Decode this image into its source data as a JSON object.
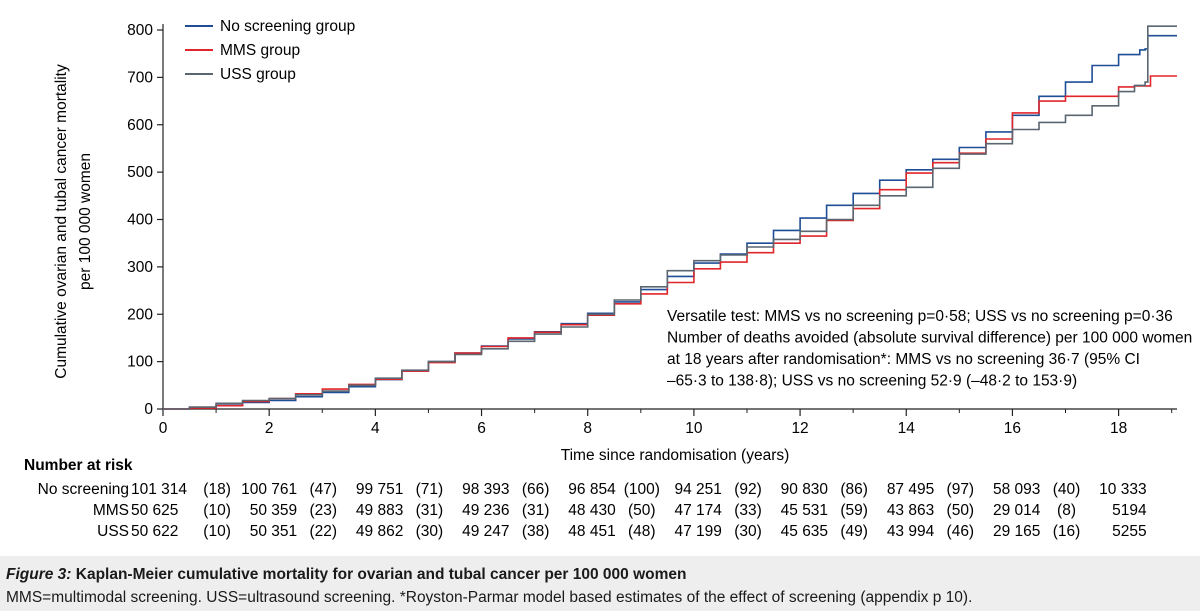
{
  "chart_data": {
    "type": "line",
    "step": true,
    "ylabel_line1": "Cumulative ovarian and tubal cancer mortality",
    "ylabel_line2": "per 100 000 women",
    "xlabel": "Time since randomisation (years)",
    "xlim": [
      0,
      19.1
    ],
    "ylim": [
      0,
      820
    ],
    "x_ticks": [
      0,
      2,
      4,
      6,
      8,
      10,
      12,
      14,
      16,
      18
    ],
    "x_tick_labels": [
      "0",
      "2",
      "4",
      "6",
      "8",
      "10",
      "12",
      "14",
      "16",
      "18"
    ],
    "y_ticks": [
      0,
      100,
      200,
      300,
      400,
      500,
      600,
      700,
      800
    ],
    "y_tick_labels": [
      "0",
      "100",
      "200",
      "300",
      "400",
      "500",
      "600",
      "700",
      "800"
    ],
    "grid": false,
    "legend_position": "top-left",
    "series": [
      {
        "name": "No screening group",
        "color": "#1f4e96",
        "x": [
          0,
          0.3,
          0.5,
          1,
          1.5,
          2,
          2.5,
          3,
          3.5,
          4,
          4.5,
          5,
          5.5,
          6,
          6.5,
          7,
          7.5,
          8,
          8.5,
          9,
          9.5,
          10,
          10.5,
          11,
          11.5,
          12,
          12.5,
          13,
          13.5,
          14,
          14.5,
          15,
          15.5,
          16,
          16.5,
          17,
          17.5,
          18,
          18.4,
          18.5,
          18.55,
          19.1
        ],
        "y": [
          0,
          0,
          3,
          8,
          14,
          18,
          26,
          35,
          47,
          62,
          80,
          100,
          118,
          133,
          148,
          163,
          180,
          202,
          226,
          252,
          280,
          308,
          327,
          350,
          377,
          403,
          430,
          455,
          483,
          505,
          527,
          552,
          585,
          620,
          660,
          690,
          725,
          748,
          758,
          760,
          788,
          788
        ]
      },
      {
        "name": "MMS group",
        "color": "#e0262b",
        "x": [
          0,
          0.3,
          0.5,
          1,
          1.5,
          2,
          2.5,
          3,
          3.5,
          4,
          4.5,
          5,
          5.5,
          6,
          6.5,
          7,
          7.5,
          8,
          8.5,
          9,
          9.5,
          10,
          10.5,
          11,
          11.5,
          12,
          12.5,
          13,
          13.5,
          14,
          14.5,
          15,
          15.5,
          16,
          16.5,
          17,
          17.5,
          18,
          18.3,
          18.6,
          19.1
        ],
        "y": [
          0,
          0,
          2,
          7,
          16,
          22,
          32,
          42,
          52,
          63,
          80,
          98,
          118,
          132,
          150,
          162,
          178,
          198,
          222,
          243,
          267,
          296,
          310,
          330,
          350,
          365,
          398,
          423,
          463,
          498,
          520,
          540,
          570,
          625,
          650,
          660,
          660,
          680,
          682,
          703,
          703
        ]
      },
      {
        "name": "USS group",
        "color": "#5a6670",
        "x": [
          0,
          0.3,
          0.5,
          1,
          1.5,
          2,
          2.5,
          3,
          3.5,
          4,
          4.5,
          5,
          5.5,
          6,
          6.5,
          7,
          7.5,
          8,
          8.5,
          9,
          9.5,
          10,
          10.5,
          11,
          11.5,
          12,
          12.5,
          13,
          13.5,
          14,
          14.5,
          15,
          15.5,
          16,
          16.5,
          17,
          17.5,
          18,
          18.3,
          18.5,
          18.55,
          19.1
        ],
        "y": [
          0,
          0,
          4,
          12,
          18,
          22,
          30,
          38,
          50,
          65,
          82,
          100,
          115,
          127,
          143,
          158,
          173,
          200,
          230,
          258,
          292,
          313,
          325,
          342,
          358,
          375,
          400,
          430,
          450,
          468,
          508,
          538,
          560,
          590,
          605,
          620,
          640,
          670,
          683,
          690,
          808,
          808
        ]
      }
    ],
    "annotation": [
      "Versatile test: MMS vs no screening p=0·58; USS vs no screening p=0·36",
      "Number of deaths avoided (absolute survival difference) per 100 000 women",
      "at 18 years after randomisation*: MMS vs no screening 36·7 (95% CI",
      "–65·3 to 138·8); USS vs no screening 52·9 (–48·2 to 153·9)"
    ],
    "risk_table": {
      "title": "Number at risk",
      "rows": [
        {
          "label": "No screening",
          "values": [
            "101 314",
            "100 761",
            "99 751",
            "98 393",
            "96 854",
            "94 251",
            "90 830",
            "87 495",
            "58 093",
            "10 333"
          ],
          "events": [
            "(18)",
            "(47)",
            "(71)",
            "(66)",
            "(100)",
            "(92)",
            "(86)",
            "(97)",
            "(40)"
          ]
        },
        {
          "label": "MMS",
          "values": [
            "50 625",
            "50 359",
            "49 883",
            "49 236",
            "48 430",
            "47 174",
            "45 531",
            "43 863",
            "29 014",
            "5194"
          ],
          "events": [
            "(10)",
            "(23)",
            "(31)",
            "(31)",
            "(50)",
            "(33)",
            "(59)",
            "(50)",
            "(8)"
          ]
        },
        {
          "label": "USS",
          "values": [
            "50 622",
            "50 351",
            "49 862",
            "49 247",
            "48 451",
            "47 199",
            "45 635",
            "43 994",
            "29 165",
            "5255"
          ],
          "events": [
            "(10)",
            "(22)",
            "(30)",
            "(38)",
            "(48)",
            "(30)",
            "(49)",
            "(46)",
            "(16)"
          ]
        }
      ]
    }
  },
  "caption": {
    "figure_label": "Figure 3:",
    "title": " Kaplan-Meier cumulative mortality for ovarian and tubal cancer per 100 000 women",
    "note": "MMS=multimodal screening. USS=ultrasound screening. *Royston-Parmar model based estimates of the effect of screening (appendix p 10)."
  }
}
